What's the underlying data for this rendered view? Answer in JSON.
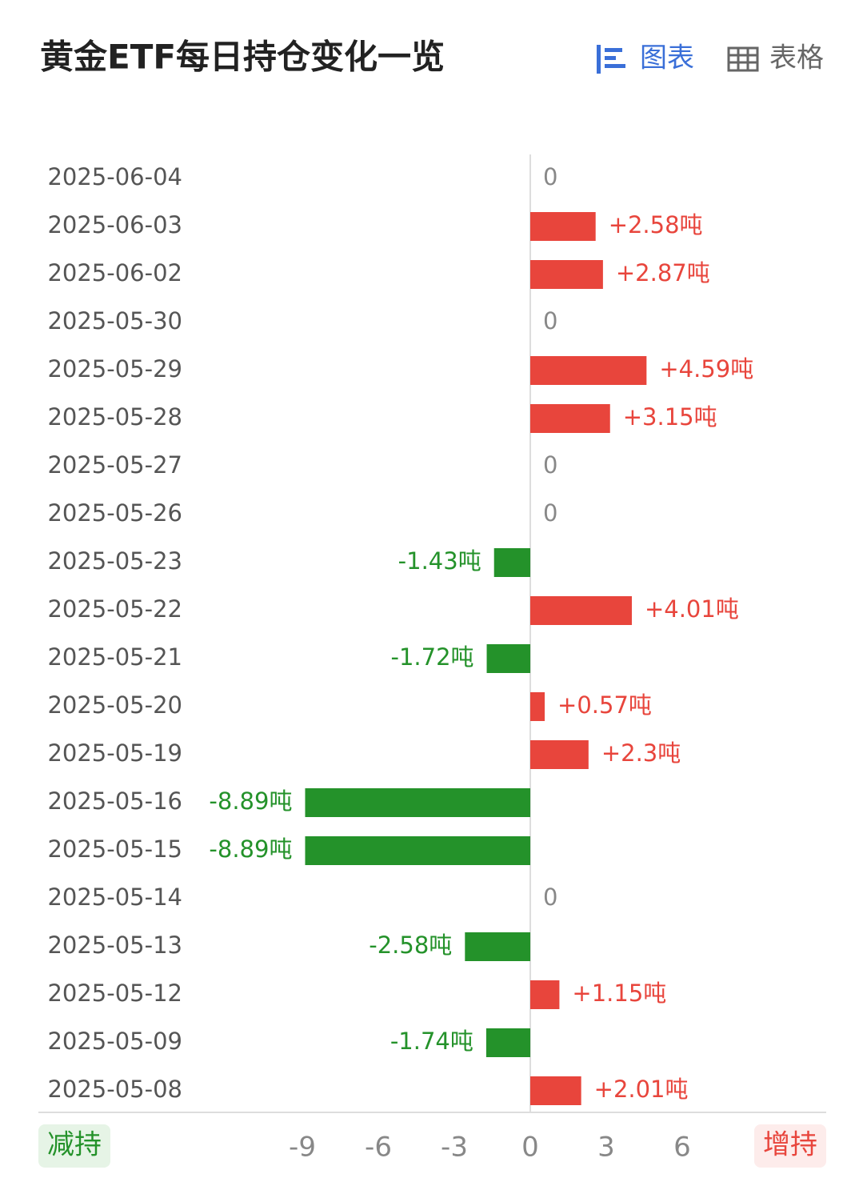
{
  "controls": [
    "图表",
    "表格"
  ],
  "chart_data": {
    "type": "bar",
    "orientation": "horizontal",
    "title": "黄金ETF每日持仓变化一览",
    "categories": [
      "2025-06-04",
      "2025-06-03",
      "2025-06-02",
      "2025-05-30",
      "2025-05-29",
      "2025-05-28",
      "2025-05-27",
      "2025-05-26",
      "2025-05-23",
      "2025-05-22",
      "2025-05-21",
      "2025-05-20",
      "2025-05-19",
      "2025-05-16",
      "2025-05-15",
      "2025-05-14",
      "2025-05-13",
      "2025-05-12",
      "2025-05-09",
      "2025-05-08"
    ],
    "values": [
      0,
      2.58,
      2.87,
      0,
      4.59,
      3.15,
      0,
      0,
      -1.43,
      4.01,
      -1.72,
      0.57,
      2.3,
      -8.89,
      -8.89,
      0,
      -2.58,
      1.15,
      -1.74,
      2.01
    ],
    "value_labels": [
      "0",
      "+2.58吨",
      "+2.87吨",
      "0",
      "+4.59吨",
      "+3.15吨",
      "0",
      "0",
      "-1.43吨",
      "+4.01吨",
      "-1.72吨",
      "+0.57吨",
      "+2.3吨",
      "-8.89吨",
      "-8.89吨",
      "0",
      "-2.58吨",
      "+1.15吨",
      "-1.74吨",
      "+2.01吨"
    ],
    "xlim": [
      -9,
      6
    ],
    "xticks": [
      -9,
      -6,
      -3,
      0,
      3,
      6
    ],
    "legend": {
      "negative": "减持",
      "positive": "增持"
    },
    "colors": {
      "positive": "#e8453c",
      "negative": "#24922a"
    }
  }
}
